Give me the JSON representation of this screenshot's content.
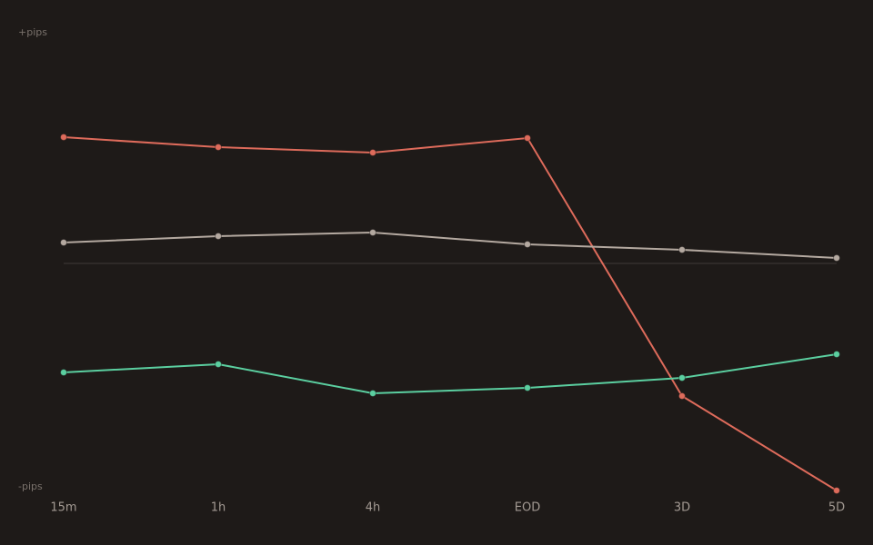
{
  "chart_data": {
    "type": "line",
    "categories": [
      "15m",
      "1h",
      "4h",
      "EOD",
      "3D",
      "5D"
    ],
    "series": [
      {
        "color": "#de6b5b",
        "values": [
          55.6,
          51.2,
          48.8,
          55.2,
          -58.4,
          -100
        ]
      },
      {
        "color": "#b4a9a0",
        "values": [
          9.2,
          12,
          13.6,
          8.4,
          6,
          2.4
        ]
      },
      {
        "color": "#5bcfa0",
        "values": [
          -48,
          -44.4,
          -57.2,
          -54.8,
          -50.4,
          -40
        ]
      }
    ],
    "ylim": [
      -100,
      100
    ],
    "yticks": [
      {
        "value": 100,
        "label": "+pips"
      },
      {
        "value": -100,
        "label": "-pips"
      }
    ]
  }
}
